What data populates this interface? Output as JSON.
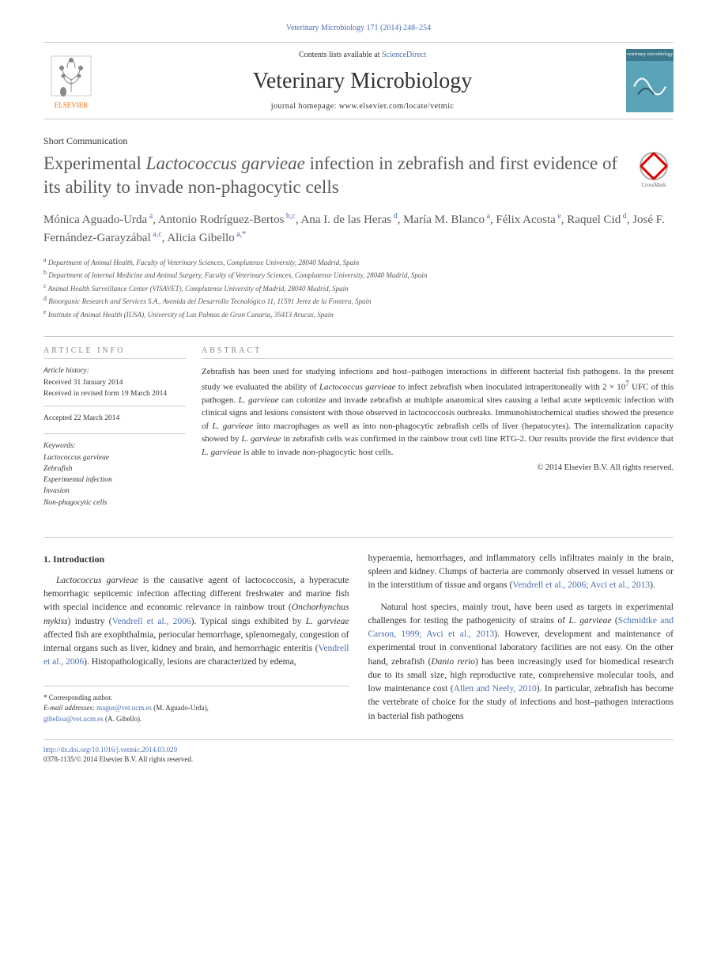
{
  "journal_ref": "Veterinary Microbiology 171 (2014) 248–254",
  "header": {
    "contents_prefix": "Contents lists available at ",
    "contents_link": "ScienceDirect",
    "journal_name": "Veterinary Microbiology",
    "homepage_label": "journal homepage: www.elsevier.com/locate/vetmic",
    "publisher": "ELSEVIER",
    "cover_text": "veterinary microbiology"
  },
  "article_type": "Short Communication",
  "title_part1": "Experimental ",
  "title_italic": "Lactococcus garvieae",
  "title_part2": " infection in zebrafish and first evidence of its ability to invade non-phagocytic cells",
  "crossmark": "CrossMark",
  "authors_html": "Mónica Aguado-Urda<sup> a</sup>, Antonio Rodríguez-Bertos<sup> b,c</sup>, Ana I. de las Heras<sup> d</sup>, María M. Blanco<sup> a</sup>, Félix Acosta<sup> e</sup>, Raquel Cid<sup> d</sup>, José F. Fernández-Garayzábal<sup> a,c</sup>, Alicia Gibello<sup> a,*</sup>",
  "affiliations": {
    "a": "Department of Animal Health, Faculty of Veterinary Sciences, Complutense University, 28040 Madrid, Spain",
    "b": "Department of Internal Medicine and Animal Surgery, Faculty of Veterinary Sciences, Complutense University, 28040 Madrid, Spain",
    "c": "Animal Health Surveillance Center (VISAVET), Complutense University of Madrid, 28040 Madrid, Spain",
    "d": "Bioorganic Research and Services S.A., Avenida del Desarrollo Tecnológico 11, 11591 Jerez de la Fontera, Spain",
    "e": "Institute of Animal Health (IUSA), University of Las Palmas de Gran Canaria, 35413 Arucas, Spain"
  },
  "info": {
    "heading": "ARTICLE INFO",
    "history_label": "Article history:",
    "received": "Received 31 January 2014",
    "revised": "Received in revised form 19 March 2014",
    "accepted": "Accepted 22 March 2014",
    "keywords_label": "Keywords:",
    "keywords": [
      "Lactococcus garvieae",
      "Zebrafish",
      "Experimental infection",
      "Invasion",
      "Non-phagocytic cells"
    ]
  },
  "abstract": {
    "heading": "ABSTRACT",
    "text_parts": [
      {
        "t": "Zebrafish has been used for studying infections and host–pathogen interactions in different bacterial fish pathogens. In the present study we evaluated the ability of "
      },
      {
        "t": "Lactococcus garvieae",
        "i": true
      },
      {
        "t": " to infect zebrafish when inoculated intraperitoneally with 2 × 10"
      },
      {
        "t": "7",
        "sup": true
      },
      {
        "t": " UFC of this pathogen. "
      },
      {
        "t": "L. garvieae",
        "i": true
      },
      {
        "t": " can colonize and invade zebrafish at multiple anatomical sites causing a lethal acute septicemic infection with clinical signs and lesions consistent with those observed in lactococcosis outbreaks. Immunohistochemical studies showed the presence of "
      },
      {
        "t": "L. garvieae",
        "i": true
      },
      {
        "t": " into macrophages as well as into non-phagocytic zebrafish cells of liver (hepatocytes). The internalization capacity showed by "
      },
      {
        "t": "L. garvieae",
        "i": true
      },
      {
        "t": " in zebrafish cells was confirmed in the rainbow trout cell line RTG-2. Our results provide the first evidence that "
      },
      {
        "t": "L. garvieae",
        "i": true
      },
      {
        "t": " is able to invade non-phagocytic host cells."
      }
    ],
    "copyright": "© 2014 Elsevier B.V. All rights reserved."
  },
  "body": {
    "section_heading": "1. Introduction",
    "col1_p1_parts": [
      {
        "t": "Lactococcus garvieae",
        "i": true
      },
      {
        "t": " is the causative agent of lactococcosis, a hyperacute hemorrhagic septicemic infection affecting different freshwater and marine fish with special incidence and economic relevance in rainbow trout ("
      },
      {
        "t": "Onchorhynchus mykiss",
        "i": true
      },
      {
        "t": ") industry ("
      },
      {
        "t": "Vendrell et al., 2006",
        "c": true
      },
      {
        "t": "). Typical sings exhibited by "
      },
      {
        "t": "L. garvieae",
        "i": true
      },
      {
        "t": " affected fish are exophthalmia, periocular hemorrhage, splenomegaly, congestion of internal organs such as liver, kidney and brain, and hemorrhagic enteritis ("
      },
      {
        "t": "Vendrell et al., 2006",
        "c": true
      },
      {
        "t": "). Histopathologically, lesions are characterized by edema,"
      }
    ],
    "col2_p1_parts": [
      {
        "t": "hyperaemia, hemorrhages, and inflammatory cells infiltrates mainly in the brain, spleen and kidney. Clumps of bacteria are commonly observed in vessel lumens or in the interstitium of tissue and organs ("
      },
      {
        "t": "Vendrell et al., 2006; Avci et al., 2013",
        "c": true
      },
      {
        "t": ")."
      }
    ],
    "col2_p2_parts": [
      {
        "t": "Natural host species, mainly trout, have been used as targets in experimental challenges for testing the pathogenicity of strains of "
      },
      {
        "t": "L. garvieae",
        "i": true
      },
      {
        "t": " ("
      },
      {
        "t": "Schmidtke and Carson, 1999; Avci et al., 2013",
        "c": true
      },
      {
        "t": "). However, development and maintenance of experimental trout in conventional laboratory facilities are not easy. On the other hand, zebrafish ("
      },
      {
        "t": "Danio rerio",
        "i": true
      },
      {
        "t": ") has been increasingly used for biomedical research due to its small size, high reproductive rate, comprehensive molecular tools, and low maintenance cost ("
      },
      {
        "t": "Allen and Neely, 2010",
        "c": true
      },
      {
        "t": "). In particular, zebrafish has become the vertebrate of choice for the study of infections and host–pathogen interactions in bacterial fish pathogens"
      }
    ]
  },
  "footer": {
    "corresponding": "* Corresponding author.",
    "email_label": "E-mail addresses:",
    "email1": "magur@vet.ucm.es",
    "email1_name": "(M. Aguado-Urda),",
    "email2": "gibelloa@vet.ucm.es",
    "email2_name": "(A. Gibello).",
    "doi": "http://dx.doi.org/10.1016/j.vetmic.2014.03.029",
    "issn_copyright": "0378-1135/© 2014 Elsevier B.V. All rights reserved."
  },
  "colors": {
    "link": "#4a6fb3",
    "text": "#333333",
    "title": "#5a5a5a",
    "rule": "#cccccc",
    "elsevier_orange": "#ff6b00",
    "cover_bg": "#3a7a8c"
  },
  "typography": {
    "title_fontsize": 23,
    "journal_fontsize": 28,
    "authors_fontsize": 15,
    "body_fontsize": 11.5,
    "abstract_fontsize": 11,
    "affiliation_fontsize": 9
  }
}
